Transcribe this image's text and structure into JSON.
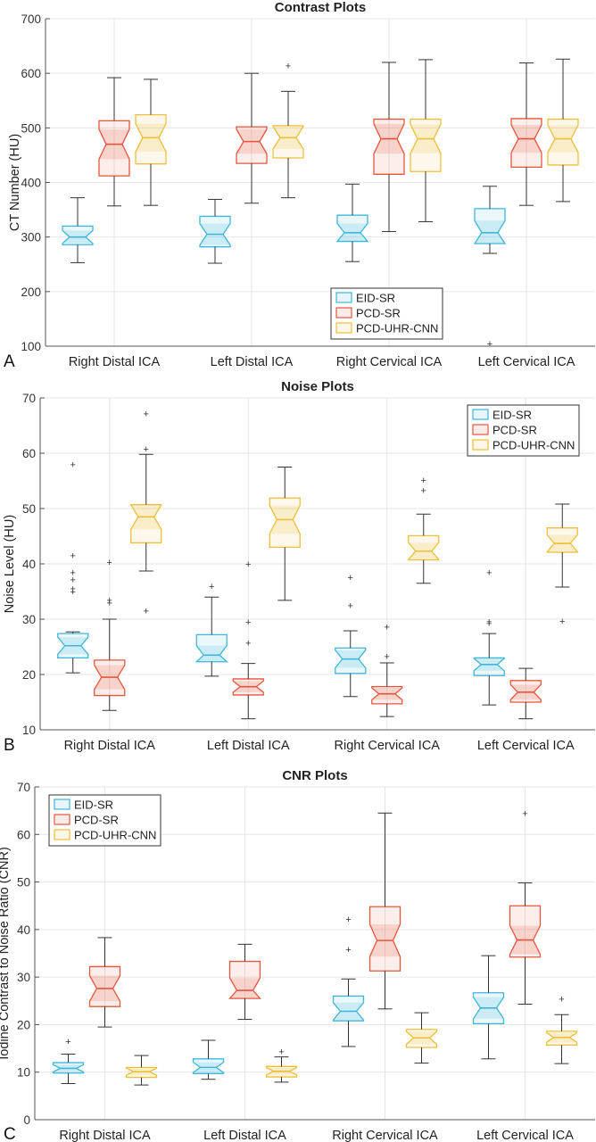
{
  "chart_data": [
    {
      "type": "box",
      "panel_letter": "A",
      "title": "Contrast Plots",
      "ylabel": "CT Number (HU)",
      "ylim": [
        100,
        700
      ],
      "yticks": [
        100,
        200,
        300,
        400,
        500,
        600,
        700
      ],
      "grid": true,
      "legend_position": "bottom-center",
      "categories": [
        "Right Distal ICA",
        "Left Distal ICA",
        "Right Cervical ICA",
        "Left Cervical ICA"
      ],
      "series": [
        {
          "name": "EID-SR",
          "color": "#3fb6dc",
          "boxes": [
            {
              "low": 253,
              "q1": 286,
              "median": 300,
              "q3": 320,
              "high": 372,
              "outliers": []
            },
            {
              "low": 252,
              "q1": 282,
              "median": 305,
              "q3": 338,
              "high": 369,
              "outliers": []
            },
            {
              "low": 255,
              "q1": 292,
              "median": 308,
              "q3": 340,
              "high": 397,
              "outliers": []
            },
            {
              "low": 270,
              "q1": 288,
              "median": 308,
              "q3": 352,
              "high": 393,
              "outliers": [
                105
              ]
            }
          ]
        },
        {
          "name": "PCD-SR",
          "color": "#e4573e",
          "boxes": [
            {
              "low": 357,
              "q1": 412,
              "median": 470,
              "q3": 513,
              "high": 592,
              "outliers": []
            },
            {
              "low": 362,
              "q1": 435,
              "median": 475,
              "q3": 502,
              "high": 600,
              "outliers": []
            },
            {
              "low": 310,
              "q1": 415,
              "median": 480,
              "q3": 516,
              "high": 620,
              "outliers": []
            },
            {
              "low": 358,
              "q1": 428,
              "median": 480,
              "q3": 517,
              "high": 619,
              "outliers": []
            }
          ]
        },
        {
          "name": "PCD-UHR-CNN",
          "color": "#edbf3a",
          "boxes": [
            {
              "low": 358,
              "q1": 434,
              "median": 482,
              "q3": 524,
              "high": 589,
              "outliers": []
            },
            {
              "low": 372,
              "q1": 445,
              "median": 482,
              "q3": 504,
              "high": 567,
              "outliers": [
                614
              ]
            },
            {
              "low": 328,
              "q1": 420,
              "median": 480,
              "q3": 516,
              "high": 625,
              "outliers": []
            },
            {
              "low": 365,
              "q1": 432,
              "median": 480,
              "q3": 516,
              "high": 626,
              "outliers": []
            }
          ]
        }
      ]
    },
    {
      "type": "box",
      "panel_letter": "B",
      "title": "Noise Plots",
      "ylabel": "Noise Level (HU)",
      "ylim": [
        10,
        70
      ],
      "yticks": [
        10,
        20,
        30,
        40,
        50,
        60,
        70
      ],
      "grid": true,
      "legend_position": "top-right",
      "categories": [
        "Right Distal ICA",
        "Left Distal ICA",
        "Right Cervical ICA",
        "Left Cervical ICA"
      ],
      "series": [
        {
          "name": "EID-SR",
          "color": "#3fb6dc",
          "boxes": [
            {
              "low": 20.3,
              "q1": 23,
              "median": 25.2,
              "q3": 27.4,
              "high": 27.7,
              "outliers": [
                35,
                35.6,
                37.2,
                38.5,
                41.5,
                58
              ]
            },
            {
              "low": 19.7,
              "q1": 22.3,
              "median": 23.5,
              "q3": 27.2,
              "high": 34,
              "outliers": [
                36
              ]
            },
            {
              "low": 16,
              "q1": 20.2,
              "median": 22.8,
              "q3": 24.8,
              "high": 27.9,
              "outliers": [
                32.5,
                37.6
              ]
            },
            {
              "low": 14.5,
              "q1": 19.8,
              "median": 21.8,
              "q3": 23,
              "high": 27.4,
              "outliers": [
                29.3,
                29.6,
                38.5
              ]
            }
          ]
        },
        {
          "name": "PCD-SR",
          "color": "#e4573e",
          "boxes": [
            {
              "low": 13.5,
              "q1": 16.2,
              "median": 19.5,
              "q3": 22.6,
              "high": 30,
              "outliers": [
                33,
                33.5,
                40.3
              ]
            },
            {
              "low": 12,
              "q1": 16.3,
              "median": 17.8,
              "q3": 19.2,
              "high": 22,
              "outliers": [
                25.7,
                29.5,
                40
              ]
            },
            {
              "low": 12.4,
              "q1": 14.7,
              "median": 16.5,
              "q3": 17.8,
              "high": 22.1,
              "outliers": [
                23.3,
                28.6
              ]
            },
            {
              "low": 12,
              "q1": 15,
              "median": 16.8,
              "q3": 18.9,
              "high": 21.1,
              "outliers": []
            }
          ]
        },
        {
          "name": "PCD-UHR-CNN",
          "color": "#edbf3a",
          "boxes": [
            {
              "low": 38.7,
              "q1": 43.8,
              "median": 48.5,
              "q3": 50.7,
              "high": 59.8,
              "outliers": [
                31.5,
                60.8,
                67.2
              ]
            },
            {
              "low": 33.4,
              "q1": 43,
              "median": 48,
              "q3": 51.9,
              "high": 57.5,
              "outliers": []
            },
            {
              "low": 36.5,
              "q1": 40.7,
              "median": 42.3,
              "q3": 45.1,
              "high": 49,
              "outliers": [
                53.3,
                55.2
              ]
            },
            {
              "low": 35.8,
              "q1": 42.1,
              "median": 43.7,
              "q3": 46.5,
              "high": 50.8,
              "outliers": [
                29.7
              ]
            }
          ]
        }
      ]
    },
    {
      "type": "box",
      "panel_letter": "C",
      "title": "CNR Plots",
      "ylabel": "Iodine Contrast to Noise Ratio (CNR)",
      "ylim": [
        0,
        70
      ],
      "yticks": [
        0,
        10,
        20,
        30,
        40,
        50,
        60,
        70
      ],
      "grid": true,
      "legend_position": "top-left",
      "categories": [
        "Right Distal ICA",
        "Left Distal ICA",
        "Right Cervical ICA",
        "Left Cervical ICA"
      ],
      "series": [
        {
          "name": "EID-SR",
          "color": "#3fb6dc",
          "boxes": [
            {
              "low": 7.6,
              "q1": 9.8,
              "median": 10.8,
              "q3": 12,
              "high": 13.8,
              "outliers": [
                16.5
              ]
            },
            {
              "low": 8.5,
              "q1": 9.7,
              "median": 11,
              "q3": 12.8,
              "high": 16.7,
              "outliers": []
            },
            {
              "low": 15.4,
              "q1": 20.8,
              "median": 22.8,
              "q3": 26,
              "high": 29.6,
              "outliers": [
                35.8,
                42.2
              ]
            },
            {
              "low": 12.8,
              "q1": 20.2,
              "median": 23.5,
              "q3": 26.7,
              "high": 34.5,
              "outliers": []
            }
          ]
        },
        {
          "name": "PCD-SR",
          "color": "#e4573e",
          "boxes": [
            {
              "low": 19.5,
              "q1": 23.8,
              "median": 27.6,
              "q3": 32.2,
              "high": 38.3,
              "outliers": []
            },
            {
              "low": 21.1,
              "q1": 25.5,
              "median": 27.2,
              "q3": 33.3,
              "high": 36.9,
              "outliers": []
            },
            {
              "low": 23.3,
              "q1": 31.3,
              "median": 37.7,
              "q3": 44.8,
              "high": 64.5,
              "outliers": []
            },
            {
              "low": 24.3,
              "q1": 34.2,
              "median": 37.8,
              "q3": 45,
              "high": 49.8,
              "outliers": [
                64.5
              ]
            }
          ]
        },
        {
          "name": "PCD-UHR-CNN",
          "color": "#edbf3a",
          "boxes": [
            {
              "low": 7.3,
              "q1": 8.9,
              "median": 10.1,
              "q3": 11,
              "high": 13.5,
              "outliers": []
            },
            {
              "low": 7.9,
              "q1": 9,
              "median": 10.2,
              "q3": 11.2,
              "high": 13.2,
              "outliers": [
                14.4
              ]
            },
            {
              "low": 11.9,
              "q1": 15.2,
              "median": 17.2,
              "q3": 19,
              "high": 22.5,
              "outliers": []
            },
            {
              "low": 11.8,
              "q1": 15.7,
              "median": 17.3,
              "q3": 18.6,
              "high": 22.1,
              "outliers": [
                25.4
              ]
            }
          ]
        }
      ]
    }
  ]
}
